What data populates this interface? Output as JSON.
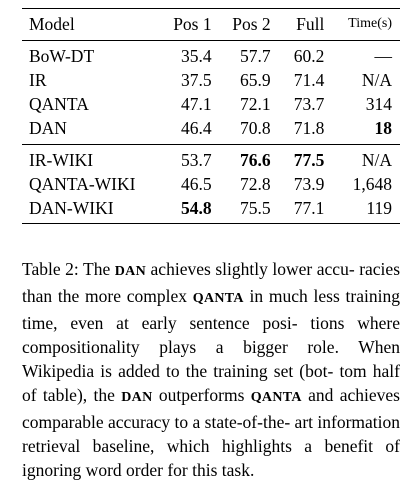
{
  "table": {
    "headers": {
      "model": "Model",
      "pos1": "Pos 1",
      "pos2": "Pos 2",
      "full": "Full",
      "time": "Time(s)"
    },
    "group1": [
      {
        "model": "BoW-DT",
        "pos1": "35.4",
        "pos2": "57.7",
        "full": "60.2",
        "time": "—"
      },
      {
        "model": "IR",
        "pos1": "37.5",
        "pos2": "65.9",
        "full": "71.4",
        "time": "N/A"
      },
      {
        "model": "QANTA",
        "pos1": "47.1",
        "pos2": "72.1",
        "full": "73.7",
        "time": "314"
      },
      {
        "model": "DAN",
        "pos1": "46.4",
        "pos2": "70.8",
        "full": "71.8",
        "time": "18"
      }
    ],
    "group2": [
      {
        "model": "IR-WIKI",
        "pos1": "53.7",
        "pos2": "76.6",
        "full": "77.5",
        "time": "N/A"
      },
      {
        "model": "QANTA-WIKI",
        "pos1": "46.5",
        "pos2": "72.8",
        "full": "73.9",
        "time": "1,648"
      },
      {
        "model": "DAN-WIKI",
        "pos1": "54.8",
        "pos2": "75.5",
        "full": "77.1",
        "time": "119"
      }
    ]
  },
  "caption": {
    "p1": "Table 2: The ",
    "dan1": "DAN",
    "p2": " achieves slightly lower accu- racies than the more complex ",
    "qanta1": "QANTA",
    "p3": " in much less training time, even at early sentence posi- tions where compositionality plays a bigger role. When Wikipedia is added to the training set (bot- tom half of table), the ",
    "dan2": "DAN",
    "p4": " outperforms ",
    "qanta2": "QANTA",
    "p5": " and achieves comparable accuracy to a state-of-the- art information retrieval baseline, which highlights a benefit of ignoring word order for this task."
  }
}
